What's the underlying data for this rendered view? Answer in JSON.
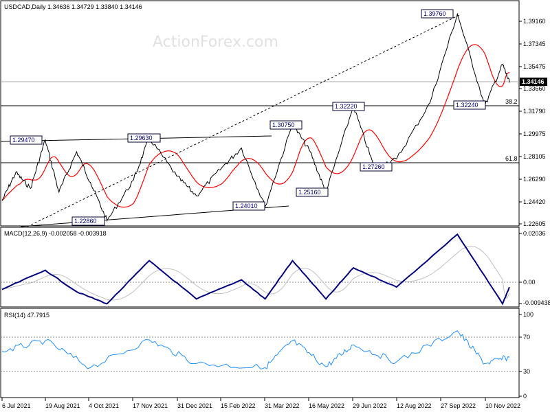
{
  "watermark": "ActionForex.com",
  "price_panel": {
    "header": "USDCAD,Daily  1.34636 1.34729 1.33840 1.34146",
    "current_price_label": "1.34146",
    "y_ticks": [
      "1.39160",
      "1.37345",
      "1.35475",
      "1.33660",
      "1.31790",
      "1.29975",
      "1.28105",
      "1.26290",
      "1.24420",
      "1.22605"
    ],
    "fib_labels": [
      "38.2",
      "61.8"
    ],
    "levels": [
      {
        "label": "1.29470"
      },
      {
        "label": "1.29630"
      },
      {
        "label": "1.22860"
      },
      {
        "label": "1.24010"
      },
      {
        "label": "1.30750"
      },
      {
        "label": "1.25160"
      },
      {
        "label": "1.32220"
      },
      {
        "label": "1.27260"
      },
      {
        "label": "1.39760"
      },
      {
        "label": "1.32240"
      }
    ]
  },
  "macd_panel": {
    "header": "MACD(12,26,9) -0.002058 -0.003918",
    "y_ticks": [
      "0.02036",
      "0.00",
      "-0.009438"
    ]
  },
  "rsi_panel": {
    "header": "RSI(14) 47.7915",
    "y_ticks": [
      "100",
      "70",
      "30",
      "0"
    ]
  },
  "x_ticks": [
    "6 Jul 2021",
    "19 Aug 2021",
    "4 Oct 2021",
    "17 Nov 2021",
    "31 Dec 2021",
    "15 Feb 2022",
    "31 Mar 2022",
    "16 May 2022",
    "29 Jun 2022",
    "12 Aug 2022",
    "27 Sep 2022",
    "10 Nov 2022"
  ],
  "colors": {
    "price": "#000000",
    "sma": "#ff0000",
    "macd": "#000080",
    "signal": "#c0c0c0",
    "rsi": "#1e90ff",
    "level_line": "#000000",
    "grid_dotted": "#888888"
  },
  "chart_data": [
    {
      "type": "line",
      "title": "USDCAD,Daily",
      "series": [
        {
          "values": [
            {
              "x": "2021-07-06",
              "y": 1.245
            },
            {
              "x": "2021-07-20",
              "y": 1.268
            },
            {
              "x": "2021-08-04",
              "y": 1.255
            },
            {
              "x": "2021-08-19",
              "y": 1.2947
            },
            {
              "x": "2021-09-02",
              "y": 1.252
            },
            {
              "x": "2021-09-20",
              "y": 1.285
            },
            {
              "x": "2021-10-04",
              "y": 1.26
            },
            {
              "x": "2021-10-21",
              "y": 1.2286
            },
            {
              "x": "2021-11-17",
              "y": 1.262
            },
            {
              "x": "2021-12-03",
              "y": 1.2963
            },
            {
              "x": "2021-12-31",
              "y": 1.265
            },
            {
              "x": "2022-01-20",
              "y": 1.249
            },
            {
              "x": "2022-02-15",
              "y": 1.272
            },
            {
              "x": "2022-03-07",
              "y": 1.288
            },
            {
              "x": "2022-03-31",
              "y": 1.2401
            },
            {
              "x": "2022-04-28",
              "y": 1.3075
            },
            {
              "x": "2022-05-16",
              "y": 1.285
            },
            {
              "x": "2022-06-01",
              "y": 1.2516
            },
            {
              "x": "2022-06-29",
              "y": 1.3222
            },
            {
              "x": "2022-07-20",
              "y": 1.2726
            },
            {
              "x": "2022-08-12",
              "y": 1.279
            },
            {
              "x": "2022-09-15",
              "y": 1.325
            },
            {
              "x": "2022-10-13",
              "y": 1.3976
            },
            {
              "x": "2022-11-10",
              "y": 1.3224
            },
            {
              "x": "2022-11-28",
              "y": 1.3565
            },
            {
              "x": "2022-12-05",
              "y": 1.34146
            }
          ]
        }
      ]
    },
    {
      "type": "line",
      "title": "MACD(12,26,9)",
      "series": [
        {
          "name": "MACD",
          "values": [
            {
              "x": "2021-07-06",
              "y": -0.003
            },
            {
              "x": "2021-08-19",
              "y": 0.005
            },
            {
              "x": "2021-09-20",
              "y": -0.004
            },
            {
              "x": "2021-10-21",
              "y": -0.009
            },
            {
              "x": "2021-12-03",
              "y": 0.009
            },
            {
              "x": "2022-01-20",
              "y": -0.007
            },
            {
              "x": "2022-03-07",
              "y": 0.001
            },
            {
              "x": "2022-03-31",
              "y": -0.007
            },
            {
              "x": "2022-04-28",
              "y": 0.009
            },
            {
              "x": "2022-06-01",
              "y": -0.007
            },
            {
              "x": "2022-06-29",
              "y": 0.006
            },
            {
              "x": "2022-08-12",
              "y": -0.002
            },
            {
              "x": "2022-10-13",
              "y": 0.02
            },
            {
              "x": "2022-11-28",
              "y": -0.009
            },
            {
              "x": "2022-12-05",
              "y": -0.002058
            }
          ]
        },
        {
          "name": "Signal",
          "values": [
            {
              "x": "2022-12-05",
              "y": -0.003918
            }
          ]
        }
      ]
    },
    {
      "type": "line",
      "title": "RSI(14)",
      "series": [
        {
          "values": [
            {
              "x": "2021-07-06",
              "y": 55
            },
            {
              "x": "2021-08-19",
              "y": 68
            },
            {
              "x": "2021-10-04",
              "y": 35
            },
            {
              "x": "2021-12-03",
              "y": 69
            },
            {
              "x": "2022-01-20",
              "y": 40
            },
            {
              "x": "2022-03-31",
              "y": 35
            },
            {
              "x": "2022-04-28",
              "y": 68
            },
            {
              "x": "2022-06-01",
              "y": 36
            },
            {
              "x": "2022-06-29",
              "y": 63
            },
            {
              "x": "2022-08-12",
              "y": 42
            },
            {
              "x": "2022-10-13",
              "y": 80
            },
            {
              "x": "2022-11-10",
              "y": 40
            },
            {
              "x": "2022-12-05",
              "y": 47.79
            }
          ]
        }
      ]
    }
  ]
}
